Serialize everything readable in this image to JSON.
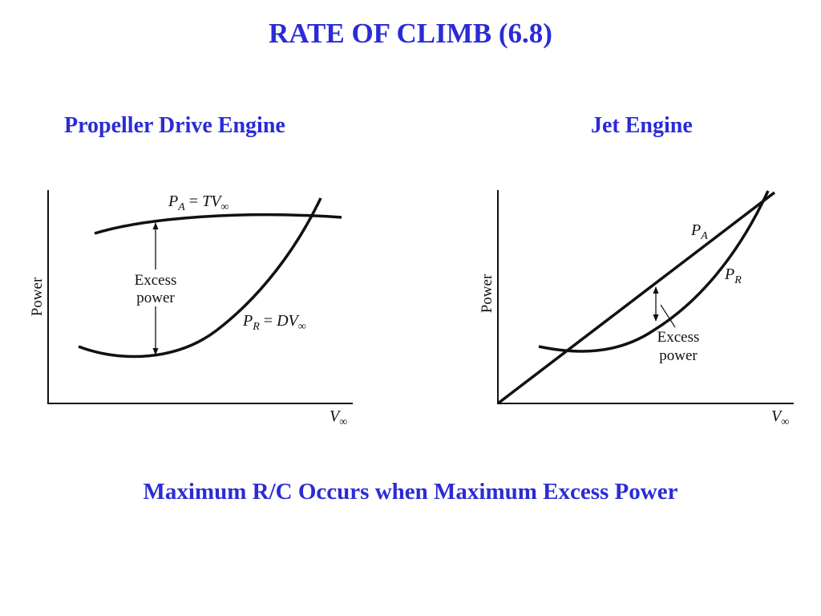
{
  "slide": {
    "title": "RATE OF CLIMB (6.8)",
    "footer": "Maximum R/C Occurs when Maximum Excess Power",
    "accent_color": "#2b2bd6"
  },
  "left_panel": {
    "heading": "Propeller Drive Engine",
    "y_axis_label": "Power",
    "x_axis_label": {
      "main": "V",
      "sub": "∞"
    },
    "curve_available": {
      "lhs_main": "P",
      "lhs_sub": "A",
      "rhs_main": "TV",
      "rhs_sub": "∞"
    },
    "curve_required": {
      "lhs_main": "P",
      "lhs_sub": "R",
      "rhs_main": "DV",
      "rhs_sub": "∞"
    },
    "excess_label_line1": "Excess",
    "excess_label_line2": "power"
  },
  "right_panel": {
    "heading": "Jet Engine",
    "y_axis_label": "Power",
    "x_axis_label": {
      "main": "V",
      "sub": "∞"
    },
    "curve_available": {
      "main": "P",
      "sub": "A"
    },
    "curve_required": {
      "main": "P",
      "sub": "R"
    },
    "excess_label_line1": "Excess",
    "excess_label_line2": "power"
  }
}
